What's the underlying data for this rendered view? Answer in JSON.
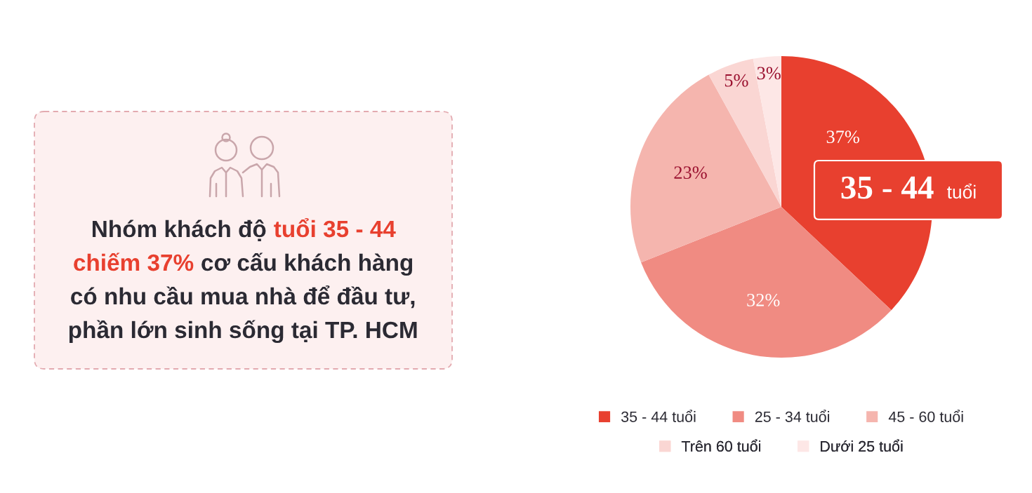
{
  "chart_data": [
    {
      "type": "other",
      "annotations": [
        "Nhóm khách độ",
        "tuổi 35 - 44",
        "chiếm 37%",
        "cơ cấu khách hàng",
        "có nhu cầu mua nhà để đầu tư,",
        "phần lớn sinh sống tại TP. HCM"
      ],
      "colors": [
        "#2b2a33",
        "#e8402f",
        "#e8402f",
        "#2b2a33",
        "#2b2a33",
        "#2b2a33"
      ]
    },
    {
      "type": "pie",
      "categories": [
        "35 - 44 tuổi",
        "25 - 34 tuổi",
        "45 - 60 tuổi",
        "Trên 60 tuổi",
        "Dưới 25 tuổi"
      ],
      "values": [
        37,
        32,
        23,
        5,
        3
      ],
      "colors": [
        "#e8402f",
        "#f08b82",
        "#f5b5ae",
        "#fad6d3",
        "#fde7e6"
      ],
      "value_labels": [
        "37%",
        "32%",
        "23%",
        "5%",
        "3%"
      ],
      "legend": "bottom",
      "annotations": [
        "35 - 44 tuổi"
      ]
    }
  ]
}
